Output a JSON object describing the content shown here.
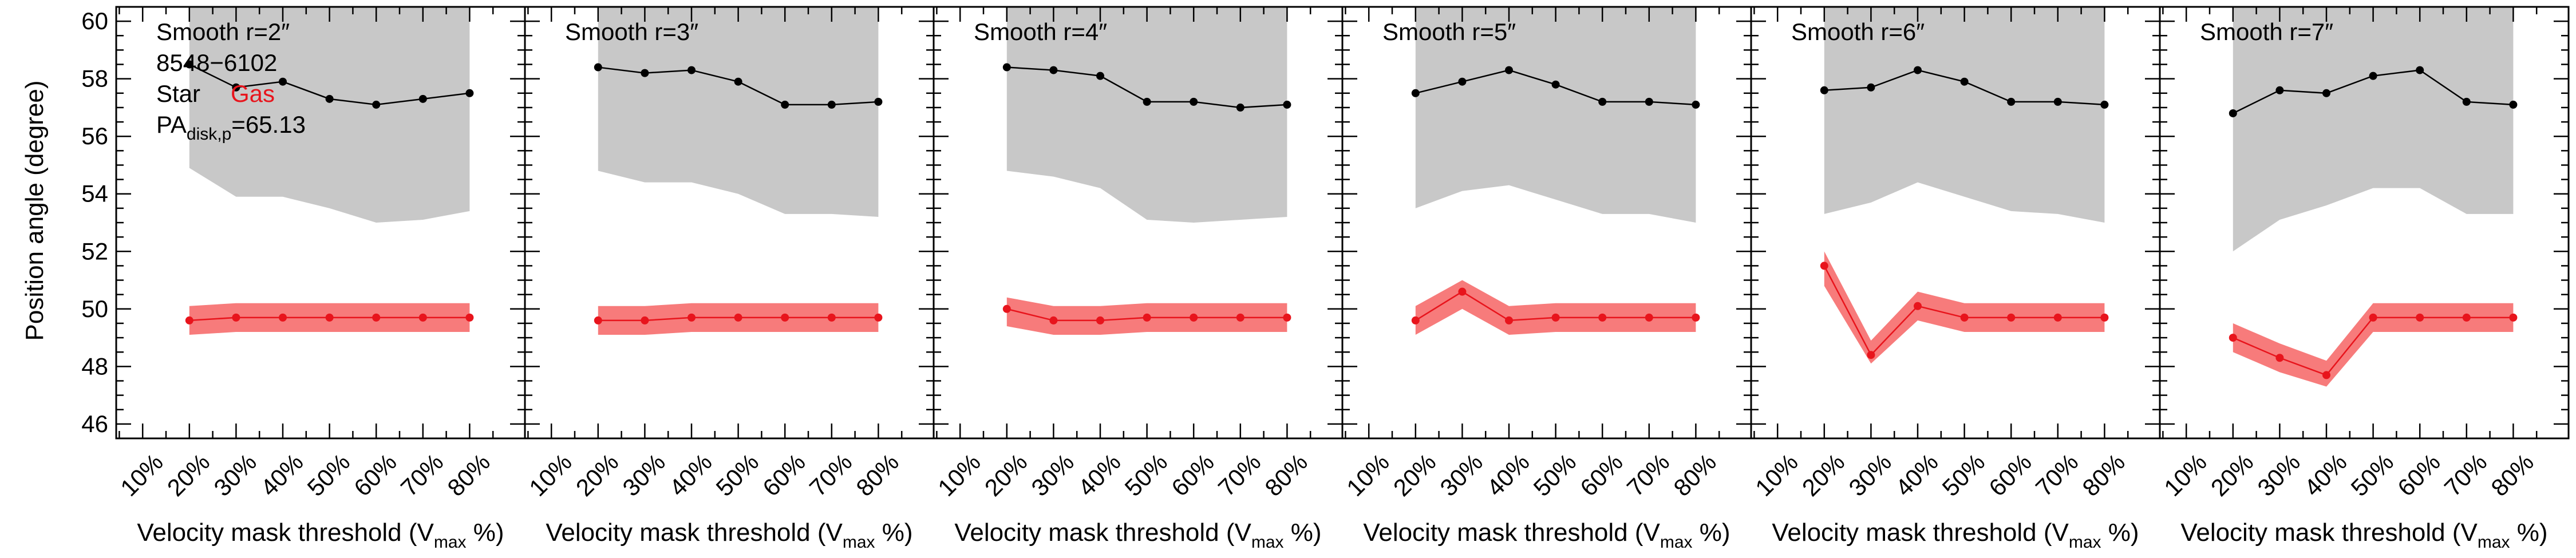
{
  "figure": {
    "ylabel": "Position angle (degree)",
    "xlabel_main": "Velocity mask threshold (V",
    "xlabel_sub": "max",
    "xlabel_tail": " %)",
    "annotation": {
      "galaxy_id": "8548−6102",
      "star_label": "Star",
      "gas_label": "Gas",
      "pa_main": "PA",
      "pa_sub": "disk,p",
      "pa_value": "=65.13"
    }
  },
  "colors": {
    "star": "#000000",
    "star_band": "#c8c8c8",
    "gas": "#e8141c",
    "gas_band": "#f77b7b"
  },
  "chart_data": [
    {
      "type": "line",
      "title": "Smooth r=2″",
      "categories": [
        "10%",
        "20%",
        "30%",
        "40%",
        "50%",
        "60%",
        "70%",
        "80%"
      ],
      "ylim": [
        45.5,
        60.5
      ],
      "yticks": [
        46,
        48,
        50,
        52,
        54,
        56,
        58,
        60
      ],
      "series": [
        {
          "name": "Star",
          "x": [
            "20%",
            "30%",
            "40%",
            "50%",
            "60%",
            "70%",
            "80%"
          ],
          "values": [
            58.5,
            57.7,
            57.9,
            57.3,
            57.1,
            57.3,
            57.5
          ],
          "band_lower": [
            54.9,
            53.9,
            53.9,
            53.5,
            53.0,
            53.1,
            53.4
          ],
          "band_upper": [
            60.5,
            60.5,
            60.5,
            60.5,
            60.5,
            60.5,
            60.5
          ]
        },
        {
          "name": "Gas",
          "x": [
            "20%",
            "30%",
            "40%",
            "50%",
            "60%",
            "70%",
            "80%"
          ],
          "values": [
            49.6,
            49.7,
            49.7,
            49.7,
            49.7,
            49.7,
            49.7
          ],
          "band_lower": [
            49.1,
            49.2,
            49.2,
            49.2,
            49.2,
            49.2,
            49.2
          ],
          "band_upper": [
            50.1,
            50.2,
            50.2,
            50.2,
            50.2,
            50.2,
            50.2
          ]
        }
      ]
    },
    {
      "type": "line",
      "title": "Smooth r=3″",
      "categories": [
        "10%",
        "20%",
        "30%",
        "40%",
        "50%",
        "60%",
        "70%",
        "80%"
      ],
      "ylim": [
        45.5,
        60.5
      ],
      "yticks": [
        46,
        48,
        50,
        52,
        54,
        56,
        58,
        60
      ],
      "series": [
        {
          "name": "Star",
          "x": [
            "20%",
            "30%",
            "40%",
            "50%",
            "60%",
            "70%",
            "80%"
          ],
          "values": [
            58.4,
            58.2,
            58.3,
            57.9,
            57.1,
            57.1,
            57.2
          ],
          "band_lower": [
            54.8,
            54.4,
            54.4,
            54.0,
            53.3,
            53.3,
            53.2
          ],
          "band_upper": [
            60.5,
            60.5,
            60.5,
            60.5,
            60.5,
            60.5,
            60.5
          ]
        },
        {
          "name": "Gas",
          "x": [
            "20%",
            "30%",
            "40%",
            "50%",
            "60%",
            "70%",
            "80%"
          ],
          "values": [
            49.6,
            49.6,
            49.7,
            49.7,
            49.7,
            49.7,
            49.7
          ],
          "band_lower": [
            49.1,
            49.1,
            49.2,
            49.2,
            49.2,
            49.2,
            49.2
          ],
          "band_upper": [
            50.1,
            50.1,
            50.2,
            50.2,
            50.2,
            50.2,
            50.2
          ]
        }
      ]
    },
    {
      "type": "line",
      "title": "Smooth r=4″",
      "categories": [
        "10%",
        "20%",
        "30%",
        "40%",
        "50%",
        "60%",
        "70%",
        "80%"
      ],
      "ylim": [
        45.5,
        60.5
      ],
      "yticks": [
        46,
        48,
        50,
        52,
        54,
        56,
        58,
        60
      ],
      "series": [
        {
          "name": "Star",
          "x": [
            "20%",
            "30%",
            "40%",
            "50%",
            "60%",
            "70%",
            "80%"
          ],
          "values": [
            58.4,
            58.3,
            58.1,
            57.2,
            57.2,
            57.0,
            57.1
          ],
          "band_lower": [
            54.8,
            54.6,
            54.2,
            53.1,
            53.0,
            53.1,
            53.2
          ],
          "band_upper": [
            60.5,
            60.5,
            60.5,
            60.5,
            60.5,
            60.5,
            60.5
          ]
        },
        {
          "name": "Gas",
          "x": [
            "20%",
            "30%",
            "40%",
            "50%",
            "60%",
            "70%",
            "80%"
          ],
          "values": [
            50.0,
            49.6,
            49.6,
            49.7,
            49.7,
            49.7,
            49.7
          ],
          "band_lower": [
            49.4,
            49.1,
            49.1,
            49.2,
            49.2,
            49.2,
            49.2
          ],
          "band_upper": [
            50.4,
            50.1,
            50.1,
            50.2,
            50.2,
            50.2,
            50.2
          ]
        }
      ]
    },
    {
      "type": "line",
      "title": "Smooth r=5″",
      "categories": [
        "10%",
        "20%",
        "30%",
        "40%",
        "50%",
        "60%",
        "70%",
        "80%"
      ],
      "ylim": [
        45.5,
        60.5
      ],
      "yticks": [
        46,
        48,
        50,
        52,
        54,
        56,
        58,
        60
      ],
      "series": [
        {
          "name": "Star",
          "x": [
            "20%",
            "30%",
            "40%",
            "50%",
            "60%",
            "70%",
            "80%"
          ],
          "values": [
            57.5,
            57.9,
            58.3,
            57.8,
            57.2,
            57.2,
            57.1
          ],
          "band_lower": [
            53.5,
            54.1,
            54.3,
            53.8,
            53.3,
            53.3,
            53.0
          ],
          "band_upper": [
            60.5,
            60.5,
            60.5,
            60.5,
            60.5,
            60.5,
            60.5
          ]
        },
        {
          "name": "Gas",
          "x": [
            "20%",
            "30%",
            "40%",
            "50%",
            "60%",
            "70%",
            "80%"
          ],
          "values": [
            49.6,
            50.6,
            49.6,
            49.7,
            49.7,
            49.7,
            49.7
          ],
          "band_lower": [
            49.1,
            50.0,
            49.1,
            49.2,
            49.2,
            49.2,
            49.2
          ],
          "band_upper": [
            50.1,
            51.0,
            50.1,
            50.2,
            50.2,
            50.2,
            50.2
          ]
        }
      ]
    },
    {
      "type": "line",
      "title": "Smooth r=6″",
      "categories": [
        "10%",
        "20%",
        "30%",
        "40%",
        "50%",
        "60%",
        "70%",
        "80%"
      ],
      "ylim": [
        45.5,
        60.5
      ],
      "yticks": [
        46,
        48,
        50,
        52,
        54,
        56,
        58,
        60
      ],
      "series": [
        {
          "name": "Star",
          "x": [
            "20%",
            "30%",
            "40%",
            "50%",
            "60%",
            "70%",
            "80%"
          ],
          "values": [
            57.6,
            57.7,
            58.3,
            57.9,
            57.2,
            57.2,
            57.1
          ],
          "band_lower": [
            53.3,
            53.7,
            54.4,
            53.9,
            53.4,
            53.3,
            53.0
          ],
          "band_upper": [
            60.5,
            60.5,
            60.5,
            60.5,
            60.5,
            60.5,
            60.5
          ]
        },
        {
          "name": "Gas",
          "x": [
            "20%",
            "30%",
            "40%",
            "50%",
            "60%",
            "70%",
            "80%"
          ],
          "values": [
            51.5,
            48.4,
            50.1,
            49.7,
            49.7,
            49.7,
            49.7
          ],
          "band_lower": [
            50.8,
            48.1,
            49.6,
            49.2,
            49.2,
            49.2,
            49.2
          ],
          "band_upper": [
            52.0,
            48.9,
            50.6,
            50.2,
            50.2,
            50.2,
            50.2
          ]
        }
      ]
    },
    {
      "type": "line",
      "title": "Smooth r=7″",
      "categories": [
        "10%",
        "20%",
        "30%",
        "40%",
        "50%",
        "60%",
        "70%",
        "80%"
      ],
      "ylim": [
        45.5,
        60.5
      ],
      "yticks": [
        46,
        48,
        50,
        52,
        54,
        56,
        58,
        60
      ],
      "series": [
        {
          "name": "Star",
          "x": [
            "20%",
            "30%",
            "40%",
            "50%",
            "60%",
            "70%",
            "80%"
          ],
          "values": [
            56.8,
            57.6,
            57.5,
            58.1,
            58.3,
            57.2,
            57.1
          ],
          "band_lower": [
            52.0,
            53.1,
            53.6,
            54.2,
            54.2,
            53.3,
            53.3
          ],
          "band_upper": [
            60.5,
            60.5,
            60.5,
            60.5,
            60.5,
            60.5,
            60.5
          ]
        },
        {
          "name": "Gas",
          "x": [
            "20%",
            "30%",
            "40%",
            "50%",
            "60%",
            "70%",
            "80%"
          ],
          "values": [
            49.0,
            48.3,
            47.7,
            49.7,
            49.7,
            49.7,
            49.7
          ],
          "band_lower": [
            48.5,
            47.8,
            47.3,
            49.2,
            49.2,
            49.2,
            49.2
          ],
          "band_upper": [
            49.5,
            48.8,
            48.2,
            50.2,
            50.2,
            50.2,
            50.2
          ]
        }
      ]
    }
  ]
}
